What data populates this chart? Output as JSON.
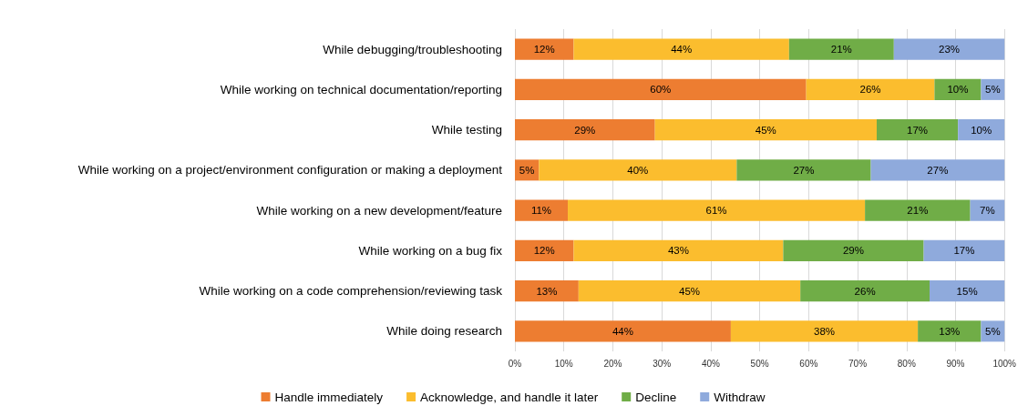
{
  "chart_data": {
    "type": "bar",
    "orientation": "horizontal",
    "stacked": true,
    "categories": [
      "While debugging/troubleshooting",
      "While working on technical documentation/reporting",
      "While testing",
      "While working on a project/environment configuration or making a deployment",
      "While working on a new development/feature",
      "While working on a bug fix",
      "While working on a code comprehension/reviewing task",
      "While doing research"
    ],
    "series": [
      {
        "name": "Handle immediately",
        "color": "#ed7d31",
        "values": [
          12,
          59.5,
          28.6,
          4.9,
          10.8,
          12,
          13,
          44.1
        ],
        "value_labels": [
          "12%",
          "60%",
          "29%",
          "5%",
          "11%",
          "12%",
          "13%",
          "44%"
        ]
      },
      {
        "name": "Acknowledge, and handle it later",
        "color": "#fbbd2e",
        "values": [
          44,
          26.2,
          45.3,
          40.4,
          60.7,
          42.8,
          45.3,
          38.2
        ],
        "value_labels": [
          "44%",
          "26%",
          "45%",
          "40%",
          "61%",
          "43%",
          "45%",
          "38%"
        ]
      },
      {
        "name": "Decline",
        "color": "#70ad47",
        "values": [
          21.4,
          9.5,
          16.6,
          27.4,
          21.5,
          28.7,
          26.4,
          12.9
        ],
        "value_labels": [
          "21%",
          "10%",
          "17%",
          "27%",
          "21%",
          "29%",
          "26%",
          "13%"
        ]
      },
      {
        "name": "Withdraw",
        "color": "#8faadc",
        "values": [
          22.6,
          4.8,
          9.5,
          27.3,
          7,
          16.5,
          15.3,
          4.8
        ],
        "value_labels": [
          "23%",
          "5%",
          "10%",
          "27%",
          "7%",
          "17%",
          "15%",
          "5%"
        ]
      }
    ],
    "xlim": [
      0,
      100
    ],
    "xticks": [
      {
        "value": 0,
        "label": "0%"
      },
      {
        "value": 10,
        "label": "10%"
      },
      {
        "value": 20,
        "label": "20%"
      },
      {
        "value": 30,
        "label": "30%"
      },
      {
        "value": 40,
        "label": "40%"
      },
      {
        "value": 50,
        "label": "50%"
      },
      {
        "value": 60,
        "label": "60%"
      },
      {
        "value": 70,
        "label": "70%"
      },
      {
        "value": 80,
        "label": "80%"
      },
      {
        "value": 90,
        "label": "90%"
      },
      {
        "value": 100,
        "label": "100%"
      }
    ],
    "grid": "x",
    "legend": "bottom"
  }
}
